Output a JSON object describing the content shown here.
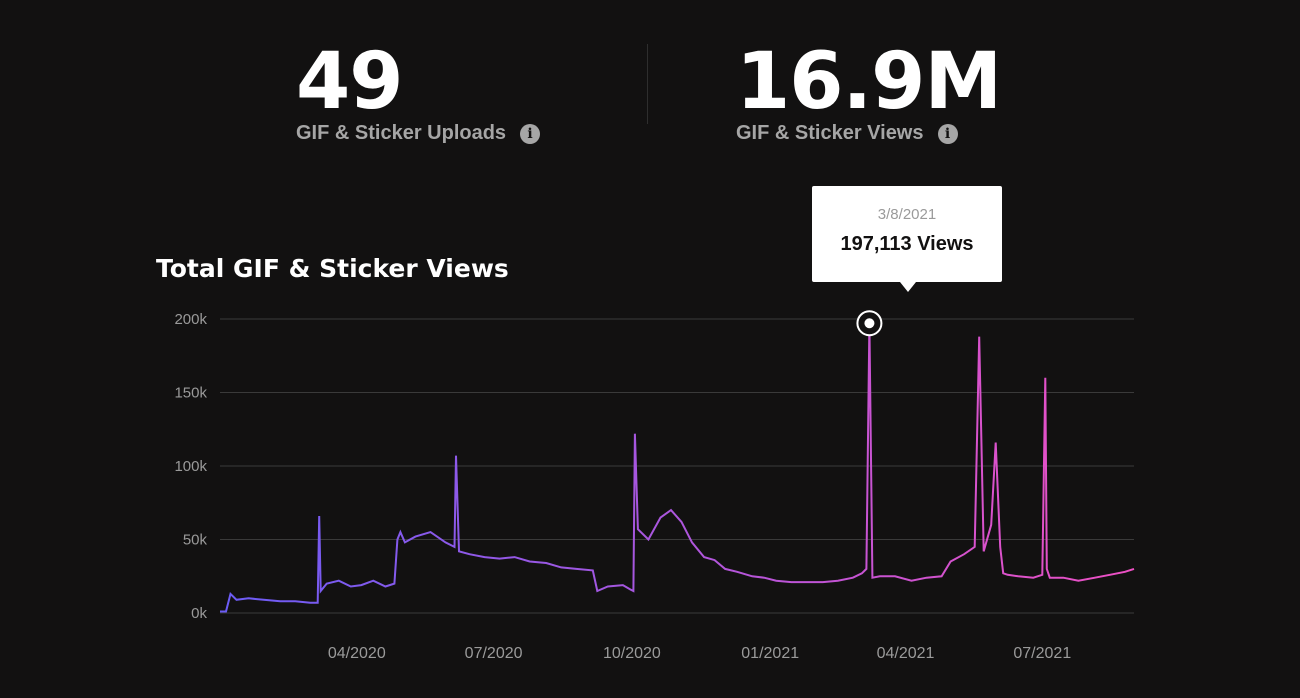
{
  "stats": [
    {
      "value": "49",
      "label": "GIF & Sticker Uploads",
      "info_icon": "info-icon"
    },
    {
      "value": "16.9M",
      "label": "GIF & Sticker Views",
      "info_icon": "info-icon"
    }
  ],
  "colors": {
    "background": "#121111",
    "line_start": "#6b5cf6",
    "line_end": "#ee50c4",
    "grid": "#3a3a3a"
  },
  "tooltip": {
    "date": "3/8/2021",
    "views": "197,113 Views"
  },
  "chart_data": {
    "type": "line",
    "title": "Total GIF & Sticker Views",
    "xlabel": "",
    "ylabel": "",
    "ylim": [
      0,
      200000
    ],
    "yticks": [
      0,
      50000,
      100000,
      150000,
      200000
    ],
    "ytick_labels": [
      "0k",
      "50k",
      "100k",
      "150k",
      "200k"
    ],
    "x_range": [
      "2020-01-01",
      "2021-08-31"
    ],
    "xticks": [
      "2020-04-01",
      "2020-07-01",
      "2020-10-01",
      "2021-01-01",
      "2021-04-01",
      "2021-07-01"
    ],
    "xtick_labels": [
      "04/2020",
      "07/2020",
      "10/2020",
      "01/2021",
      "04/2021",
      "07/2021"
    ],
    "grid": true,
    "series": [
      {
        "x": [
          "2020-01-01",
          "2020-01-05",
          "2020-01-08",
          "2020-01-12",
          "2020-01-20",
          "2020-01-30",
          "2020-02-10",
          "2020-02-20",
          "2020-03-01",
          "2020-03-06",
          "2020-03-07",
          "2020-03-08",
          "2020-03-12",
          "2020-03-20",
          "2020-03-28",
          "2020-04-04",
          "2020-04-12",
          "2020-04-20",
          "2020-04-26",
          "2020-04-28",
          "2020-04-30",
          "2020-05-03",
          "2020-05-10",
          "2020-05-20",
          "2020-05-30",
          "2020-06-05",
          "2020-06-06",
          "2020-06-08",
          "2020-06-15",
          "2020-06-25",
          "2020-07-05",
          "2020-07-15",
          "2020-07-25",
          "2020-08-05",
          "2020-08-15",
          "2020-08-25",
          "2020-09-05",
          "2020-09-08",
          "2020-09-15",
          "2020-09-25",
          "2020-09-30",
          "2020-10-02",
          "2020-10-03",
          "2020-10-05",
          "2020-10-12",
          "2020-10-20",
          "2020-10-27",
          "2020-11-03",
          "2020-11-10",
          "2020-11-18",
          "2020-11-25",
          "2020-12-02",
          "2020-12-10",
          "2020-12-20",
          "2020-12-28",
          "2021-01-05",
          "2021-01-15",
          "2021-01-25",
          "2021-02-05",
          "2021-02-15",
          "2021-02-25",
          "2021-03-03",
          "2021-03-06",
          "2021-03-08",
          "2021-03-10",
          "2021-03-15",
          "2021-03-25",
          "2021-04-05",
          "2021-04-15",
          "2021-04-25",
          "2021-05-01",
          "2021-05-10",
          "2021-05-17",
          "2021-05-20",
          "2021-05-23",
          "2021-05-28",
          "2021-05-31",
          "2021-06-03",
          "2021-06-05",
          "2021-06-08",
          "2021-06-15",
          "2021-06-25",
          "2021-07-01",
          "2021-07-03",
          "2021-07-04",
          "2021-07-06",
          "2021-07-15",
          "2021-07-25",
          "2021-08-05",
          "2021-08-15",
          "2021-08-25",
          "2021-08-31"
        ],
        "y": [
          1000,
          1000,
          13000,
          9000,
          10000,
          9000,
          8000,
          8000,
          7000,
          7000,
          66000,
          15000,
          20000,
          22000,
          18000,
          19000,
          22000,
          18000,
          20000,
          50000,
          55000,
          48000,
          52000,
          55000,
          48000,
          45000,
          107000,
          42000,
          40000,
          38000,
          37000,
          38000,
          35000,
          34000,
          31000,
          30000,
          29000,
          15000,
          18000,
          19000,
          16000,
          15000,
          122000,
          57000,
          50000,
          65000,
          70000,
          62000,
          48000,
          38000,
          36000,
          30000,
          28000,
          25000,
          24000,
          22000,
          21000,
          21000,
          21000,
          22000,
          24000,
          27000,
          30000,
          197113,
          24000,
          25000,
          25000,
          22000,
          24000,
          25000,
          35000,
          40000,
          45000,
          188000,
          42000,
          60000,
          116000,
          45000,
          27000,
          26000,
          25000,
          24000,
          26000,
          160000,
          30000,
          24000,
          24000,
          22000,
          24000,
          26000,
          28000,
          30000
        ]
      }
    ]
  }
}
